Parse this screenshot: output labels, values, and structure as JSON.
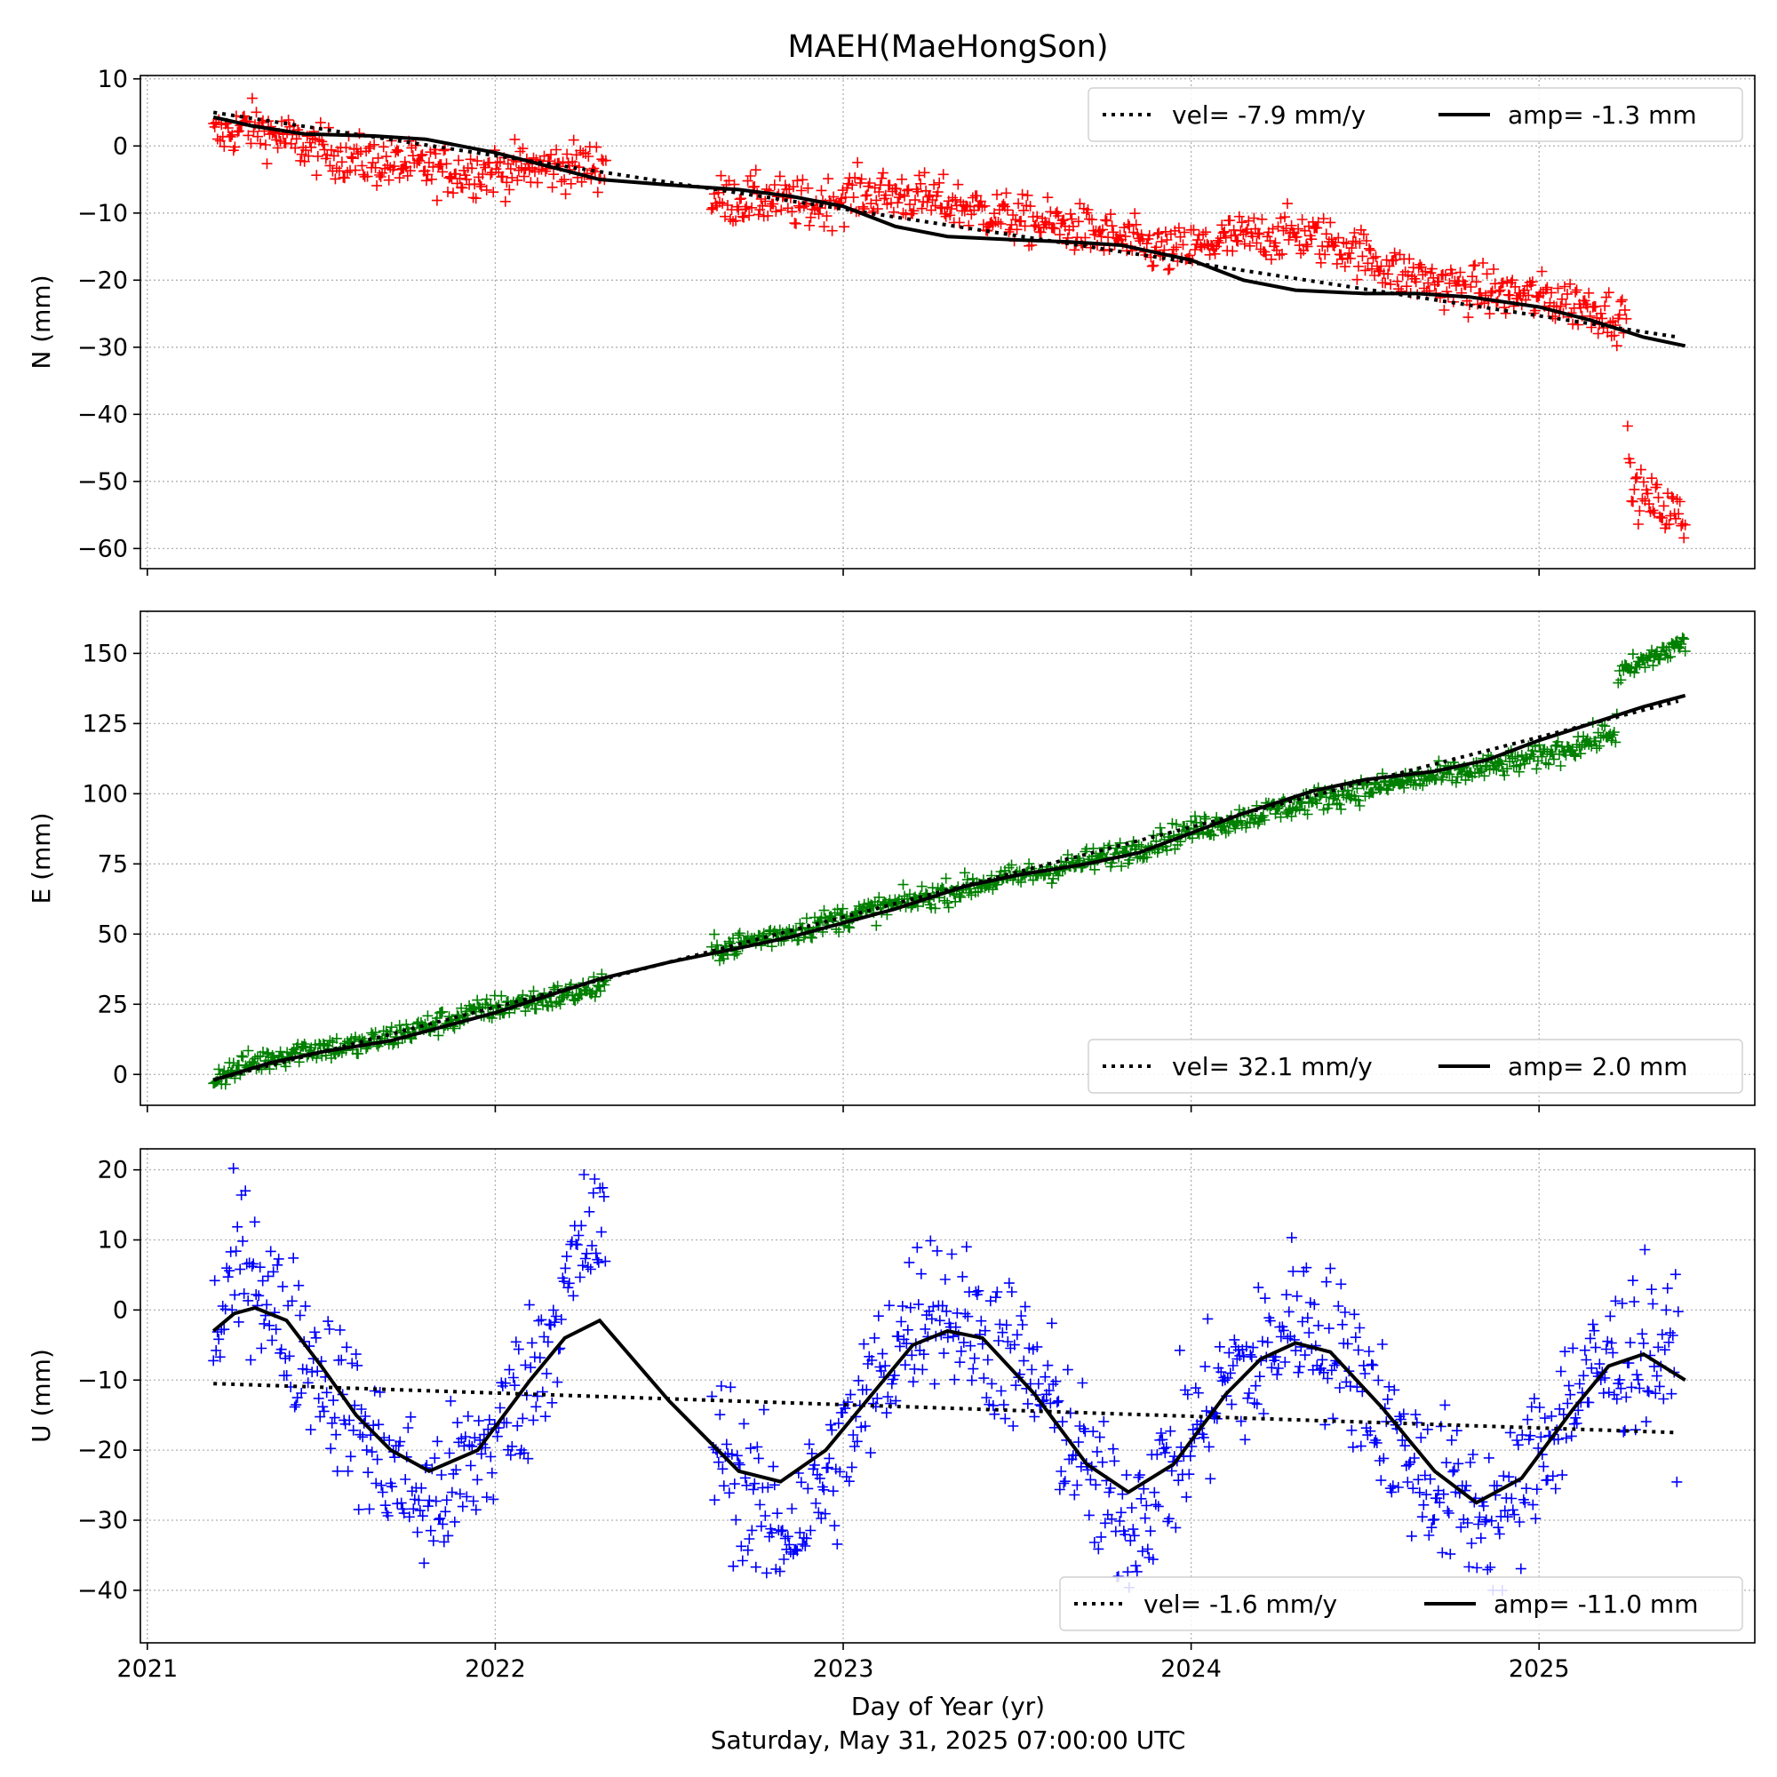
{
  "figure": {
    "title": "MAEH(MaeHongSon)",
    "xlabel": "Day of Year (yr)",
    "subtitle": "Saturday, May 31, 2025 07:00:00 UTC"
  },
  "chart_data": [
    {
      "type": "scatter",
      "id": "N",
      "ylabel": "N (mm)",
      "xlim": [
        2020.98,
        2025.62
      ],
      "ylim": [
        -63,
        10.5
      ],
      "xticks": [
        2021,
        2022,
        2023,
        2024,
        2025
      ],
      "xtick_labels": [],
      "yticks": [
        10,
        0,
        -10,
        -20,
        -30,
        -40,
        -50,
        -60
      ],
      "ytick_labels": [
        "10",
        "0",
        "−10",
        "−20",
        "−30",
        "−40",
        "−50",
        "−60"
      ],
      "grid": true,
      "legend_position": "top-right",
      "marker_color": "#ff0000",
      "observations": {
        "x": [
          2021.19,
          2021.3,
          2021.45,
          2021.6,
          2021.75,
          2021.9,
          2022.05,
          2022.2,
          2022.3,
          2022.65,
          2022.8,
          2022.9,
          2023.05,
          2023.2,
          2023.35,
          2023.5,
          2023.65,
          2023.8,
          2023.95,
          2024.1,
          2024.3,
          2024.45,
          2024.6,
          2024.75,
          2024.9,
          2025.05,
          2025.15,
          2025.25,
          2025.26,
          2025.32,
          2025.4,
          2025.42
        ],
        "y": [
          1.5,
          3,
          0,
          -2,
          -3,
          -4,
          -3.5,
          -3,
          -3,
          -8,
          -8,
          -9,
          -7,
          -7.5,
          -9,
          -11,
          -12,
          -14,
          -16,
          -14,
          -13,
          -15,
          -19,
          -21,
          -22,
          -23,
          -24,
          -26,
          -51,
          -53,
          -55,
          -57
        ]
      },
      "series": [
        {
          "name": "vel= -7.9 mm/y",
          "style": "dotted",
          "x": [
            2021.19,
            2025.4
          ],
          "y": [
            5,
            -28.5
          ]
        },
        {
          "name": "amp= -1.3 mm",
          "style": "solid",
          "x": [
            2021.19,
            2021.3,
            2021.45,
            2021.65,
            2021.8,
            2022.0,
            2022.15,
            2022.3,
            2022.5,
            2022.7,
            2022.85,
            2023.0,
            2023.15,
            2023.3,
            2023.5,
            2023.65,
            2023.8,
            2024.0,
            2024.15,
            2024.3,
            2024.5,
            2024.65,
            2024.8,
            2025.0,
            2025.15,
            2025.3,
            2025.42
          ],
          "y": [
            4.3,
            3,
            1.8,
            1.5,
            1,
            -1,
            -3,
            -5,
            -5.8,
            -6.5,
            -7.5,
            -9,
            -12,
            -13.5,
            -14,
            -14.3,
            -14.8,
            -17,
            -20,
            -21.5,
            -22,
            -22,
            -22.5,
            -24,
            -26,
            -28.5,
            -29.8
          ]
        }
      ]
    },
    {
      "type": "scatter",
      "id": "E",
      "ylabel": "E (mm)",
      "xlim": [
        2020.98,
        2025.62
      ],
      "ylim": [
        -11,
        165
      ],
      "xticks": [
        2021,
        2022,
        2023,
        2024,
        2025
      ],
      "xtick_labels": [],
      "yticks": [
        150,
        125,
        100,
        75,
        50,
        25,
        0
      ],
      "ytick_labels": [
        "150",
        "125",
        "100",
        "75",
        "50",
        "25",
        "0"
      ],
      "grid": true,
      "legend_position": "bottom-right",
      "marker_color": "#008000",
      "observations": {
        "x": [
          2021.19,
          2021.3,
          2021.45,
          2021.6,
          2021.8,
          2022.0,
          2022.15,
          2022.3,
          2022.65,
          2022.85,
          2023.0,
          2023.2,
          2023.4,
          2023.6,
          2023.8,
          2024.0,
          2024.2,
          2024.4,
          2024.6,
          2024.8,
          2025.0,
          2025.15,
          2025.22,
          2025.23,
          2025.3,
          2025.42
        ],
        "y": [
          -1,
          4,
          9,
          10,
          17,
          24,
          27,
          31,
          45,
          51,
          56,
          62,
          68,
          73,
          79,
          87,
          93,
          99,
          104,
          108,
          113,
          119,
          122,
          142,
          147,
          154
        ]
      },
      "series": [
        {
          "name": "vel= 32.1 mm/y",
          "style": "dotted",
          "x": [
            2021.19,
            2025.4
          ],
          "y": [
            -2,
            133
          ]
        },
        {
          "name": "amp= 2.0 mm",
          "style": "solid",
          "x": [
            2021.19,
            2021.35,
            2021.5,
            2021.7,
            2021.85,
            2022.0,
            2022.15,
            2022.3,
            2022.5,
            2022.7,
            2022.85,
            2023.0,
            2023.15,
            2023.35,
            2023.5,
            2023.7,
            2023.85,
            2024.0,
            2024.15,
            2024.35,
            2024.5,
            2024.7,
            2024.85,
            2025.0,
            2025.15,
            2025.3,
            2025.42
          ],
          "y": [
            -2,
            4,
            8,
            12,
            17,
            22,
            28,
            34,
            40,
            45,
            49,
            54,
            59,
            67,
            71,
            75,
            79,
            86,
            93,
            101,
            105,
            108,
            112,
            119,
            125,
            131,
            135
          ]
        }
      ]
    },
    {
      "type": "scatter",
      "id": "U",
      "ylabel": "U (mm)",
      "xlim": [
        2020.98,
        2025.62
      ],
      "ylim": [
        -47.5,
        23
      ],
      "xticks": [
        2021,
        2022,
        2023,
        2024,
        2025
      ],
      "xtick_labels": [
        "2021",
        "2022",
        "2023",
        "2024",
        "2025"
      ],
      "yticks": [
        20,
        10,
        0,
        -10,
        -20,
        -30,
        -40
      ],
      "ytick_labels": [
        "20",
        "10",
        "0",
        "−10",
        "−20",
        "−30",
        "−40"
      ],
      "grid": true,
      "legend_position": "bottom-right",
      "marker_color": "#0000ff",
      "observations": {
        "x": [
          2021.19,
          2021.25,
          2021.3,
          2021.38,
          2021.45,
          2021.55,
          2021.65,
          2021.75,
          2021.8,
          2021.9,
          2022.0,
          2022.1,
          2022.2,
          2022.28,
          2022.65,
          2022.75,
          2022.82,
          2022.95,
          2023.05,
          2023.15,
          2023.25,
          2023.35,
          2023.45,
          2023.55,
          2023.65,
          2023.75,
          2023.82,
          2023.9,
          2024.0,
          2024.1,
          2024.2,
          2024.3,
          2024.4,
          2024.5,
          2024.6,
          2024.7,
          2024.8,
          2024.9,
          2025.0,
          2025.1,
          2025.2,
          2025.3,
          2025.4
        ],
        "y": [
          -5,
          5,
          8,
          -2,
          -5,
          -12,
          -20,
          -25,
          -28,
          -24,
          -18,
          -10,
          2,
          12,
          -20,
          -28,
          -32,
          -25,
          -15,
          -5,
          2,
          -2,
          -5,
          -10,
          -18,
          -28,
          -30,
          -25,
          -18,
          -10,
          -8,
          0,
          -5,
          -10,
          -20,
          -25,
          -28,
          -30,
          -20,
          -12,
          -8,
          -5,
          -8
        ]
      },
      "series": [
        {
          "name": "vel= -1.6 mm/y",
          "style": "dotted",
          "x": [
            2021.19,
            2025.4
          ],
          "y": [
            -10.5,
            -17.5
          ]
        },
        {
          "name": "amp= -11.0 mm",
          "style": "solid",
          "x": [
            2021.19,
            2021.25,
            2021.31,
            2021.4,
            2021.5,
            2021.6,
            2021.7,
            2021.81,
            2021.95,
            2022.1,
            2022.2,
            2022.3,
            2022.5,
            2022.7,
            2022.82,
            2022.95,
            2023.1,
            2023.2,
            2023.3,
            2023.4,
            2023.55,
            2023.7,
            2023.82,
            2023.95,
            2024.1,
            2024.2,
            2024.3,
            2024.4,
            2024.55,
            2024.7,
            2024.82,
            2024.95,
            2025.1,
            2025.2,
            2025.3,
            2025.42
          ],
          "y": [
            -3,
            -0.5,
            0.3,
            -1.5,
            -8,
            -15,
            -20,
            -23,
            -20,
            -10,
            -4,
            -1.5,
            -13,
            -23,
            -24.5,
            -20,
            -11,
            -5,
            -3,
            -4,
            -12,
            -22,
            -26,
            -22,
            -12,
            -7,
            -4.7,
            -6,
            -14,
            -23,
            -27.5,
            -24,
            -14,
            -8,
            -6.3,
            -10
          ]
        }
      ]
    }
  ]
}
